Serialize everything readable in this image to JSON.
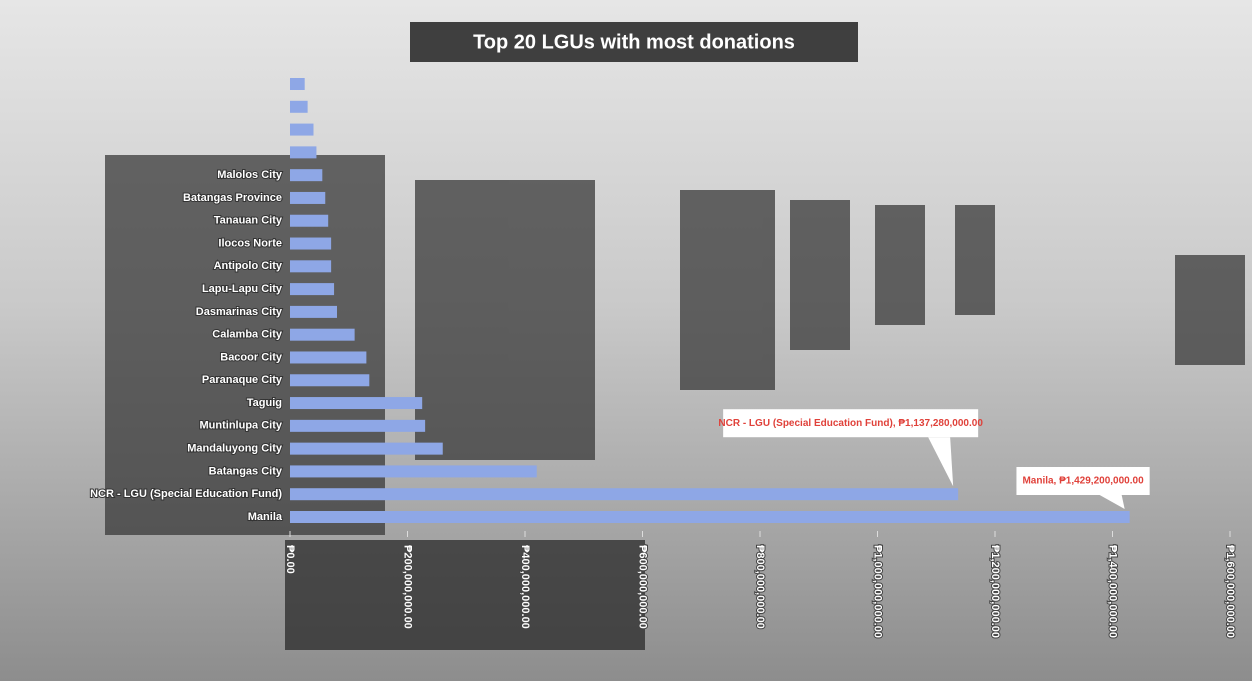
{
  "chart_data": {
    "type": "hbar",
    "title": "Top 20 LGUs with most donations",
    "categories": [
      null,
      null,
      null,
      null,
      "Malolos City",
      "Batangas Province",
      "Tanauan City",
      "Ilocos Norte",
      "Antipolo City",
      "Lapu-Lapu City",
      "Dasmarinas City",
      "Calamba City",
      "Bacoor City",
      "Paranaque City",
      "Taguig",
      "Muntinlupa City",
      "Mandaluyong City",
      "Batangas City",
      "NCR - LGU (Special Education Fund)",
      "Manila"
    ],
    "values": [
      25000000,
      30000000,
      40000000,
      45000000,
      55000000,
      60000000,
      65000000,
      70000000,
      70000000,
      75000000,
      80000000,
      110000000,
      130000000,
      135000000,
      225000000,
      230000000,
      260000000,
      420000000,
      1137280000,
      1429200000
    ],
    "value_labels": [
      null,
      null,
      null,
      null,
      null,
      null,
      null,
      null,
      null,
      null,
      null,
      null,
      null,
      null,
      null,
      null,
      null,
      null,
      "NCR - LGU (Special Education Fund), ₱1,137,280,000.00",
      "Manila, ₱1,429,200,000.00"
    ],
    "color": "#8ea7e6",
    "xlim": [
      0,
      1600000000
    ],
    "xticks": [
      {
        "value": 0,
        "label": "₱0.00"
      },
      {
        "value": 200000000,
        "label": "₱200,000,000.00"
      },
      {
        "value": 400000000,
        "label": "₱400,000,000.00"
      },
      {
        "value": 600000000,
        "label": "₱600,000,000.00"
      },
      {
        "value": 800000000,
        "label": "₱800,000,000.00"
      },
      {
        "value": 1000000000,
        "label": "₱1,000,000,000.00"
      },
      {
        "value": 1200000000,
        "label": "₱1,200,000,000.00"
      },
      {
        "value": 1400000000,
        "label": "₱1,400,000,000.00"
      },
      {
        "value": 1600000000,
        "label": "₱1,600,000,000.00"
      }
    ],
    "grid": false
  }
}
